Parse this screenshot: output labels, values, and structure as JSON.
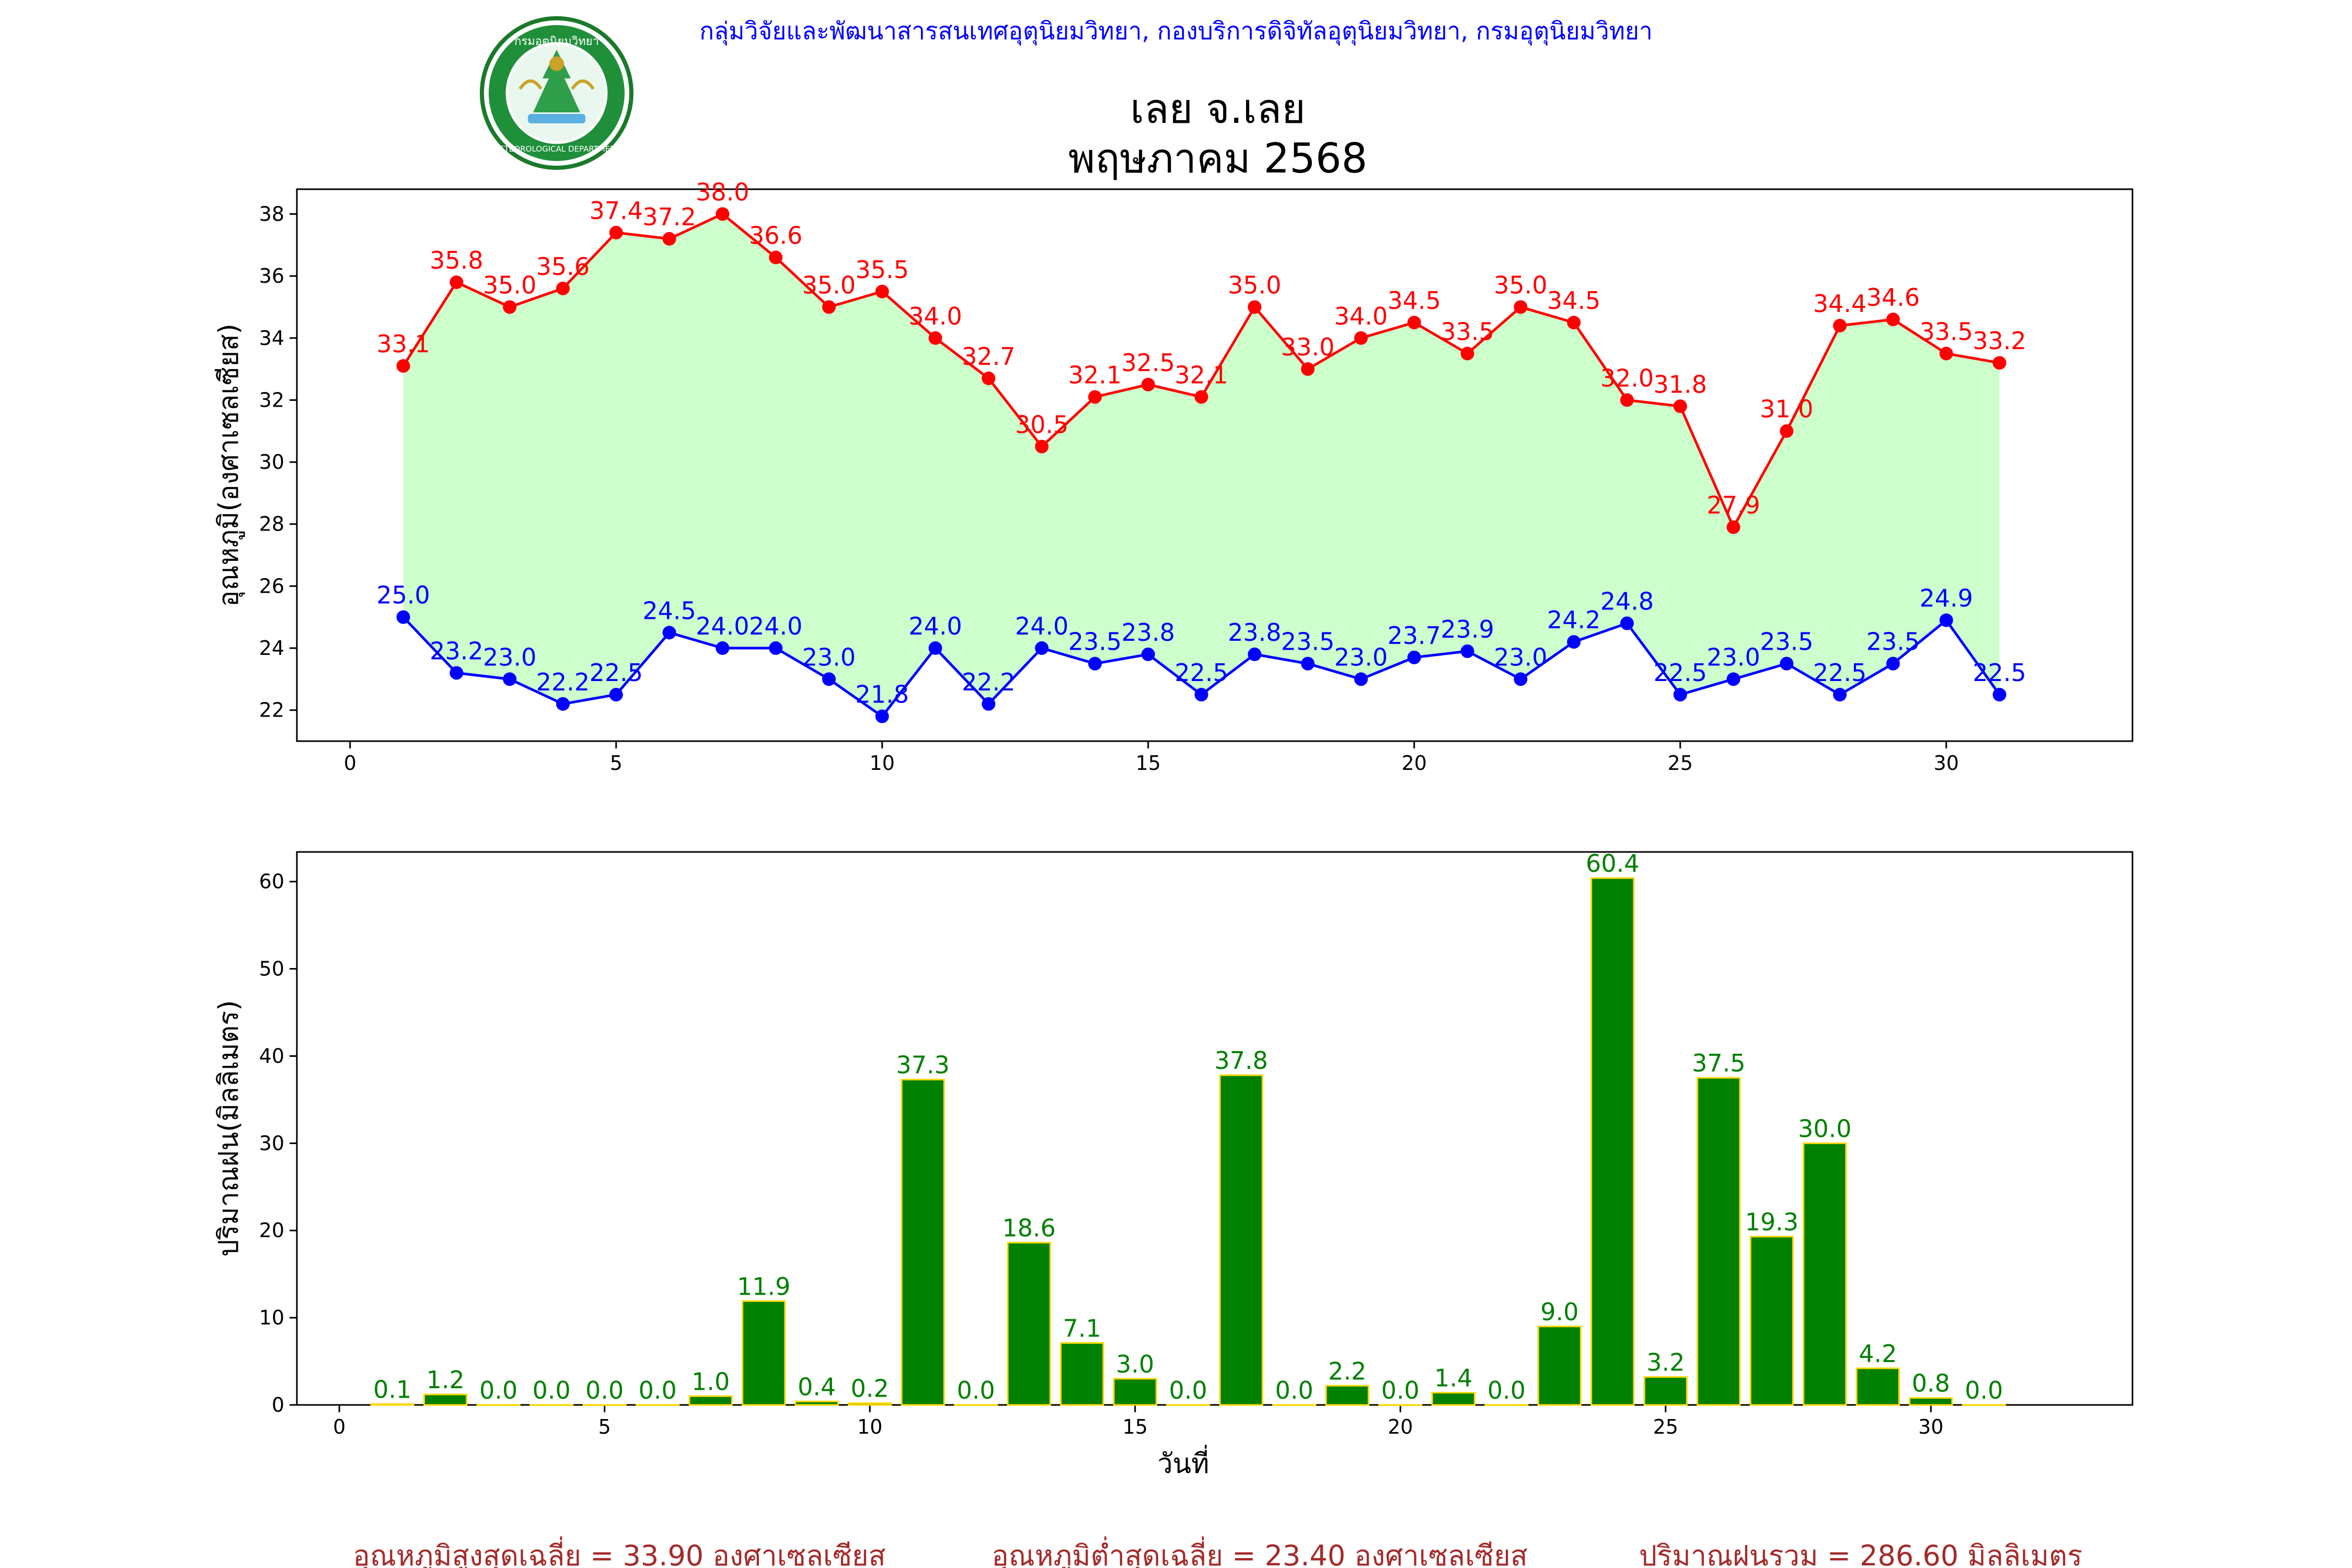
{
  "header": {
    "organization": "กลุ่มวิจัยและพัฒนาสารสนเทศอุตุนิยมวิทยา, กองบริการดิจิทัลอุตุนิยมวิทยา, กรมอุตุนิยมวิทยา",
    "station": "เลย จ.เลย",
    "month": "พฤษภาคม 2568",
    "logo_text": "METEOROLOGICAL DEPARTMENT",
    "logo_thai": "กรมอุตุนิยมวิทยา"
  },
  "footer": {
    "avg_max": "อุณหภูมิสูงสุดเฉลี่ย = 33.90 องศาเซลเซียส",
    "avg_min": "อุณหภูมิต่ำสุดเฉลี่ย = 23.40 องศาเซลเซียส",
    "total_rain": "ปริมาณฝนรวม = 286.60 มิลลิเมตร"
  },
  "chart_data": [
    {
      "type": "line",
      "ylabel": "อุณหภูมิ(องศาเซลเซียส)",
      "xlabel": "",
      "xlim": [
        -1,
        33.5
      ],
      "ylim": [
        21,
        38.8
      ],
      "xticks": [
        0,
        5,
        10,
        15,
        20,
        25,
        30
      ],
      "yticks": [
        22,
        24,
        26,
        28,
        30,
        32,
        34,
        36,
        38
      ],
      "x": [
        1,
        2,
        3,
        4,
        5,
        6,
        7,
        8,
        9,
        10,
        11,
        12,
        13,
        14,
        15,
        16,
        17,
        18,
        19,
        20,
        21,
        22,
        23,
        24,
        25,
        26,
        27,
        28,
        29,
        30,
        31
      ],
      "fill_between": {
        "color": "#ccffcc"
      },
      "series": [
        {
          "name": "max",
          "color": "#ff0000",
          "values": [
            33.1,
            35.8,
            35.0,
            35.6,
            37.4,
            37.2,
            38.0,
            36.6,
            35.0,
            35.5,
            34.0,
            32.7,
            30.5,
            32.1,
            32.5,
            32.1,
            35.0,
            33.0,
            34.0,
            34.5,
            33.5,
            35.0,
            34.5,
            32.0,
            31.8,
            27.9,
            31.0,
            34.4,
            34.6,
            33.5,
            33.2
          ]
        },
        {
          "name": "min",
          "color": "#0000ff",
          "values": [
            25.0,
            23.2,
            23.0,
            22.2,
            22.5,
            24.5,
            24.0,
            24.0,
            23.0,
            21.8,
            24.0,
            22.2,
            24.0,
            23.5,
            23.8,
            22.5,
            23.8,
            23.5,
            23.0,
            23.7,
            23.9,
            23.0,
            24.2,
            24.8,
            22.5,
            23.0,
            23.5,
            22.5,
            23.5,
            24.9,
            22.5
          ]
        }
      ]
    },
    {
      "type": "bar",
      "ylabel": "ปริมาณฝน(มิลลิเมตร)",
      "xlabel": "วันที่",
      "xlim": [
        -0.8,
        33.8
      ],
      "ylim": [
        0,
        63.4
      ],
      "xticks": [
        0,
        5,
        10,
        15,
        20,
        25,
        30
      ],
      "yticks": [
        0,
        10,
        20,
        30,
        40,
        50,
        60
      ],
      "bar_color": "#008000",
      "edge_color": "#ffd700",
      "label_color": "#008000",
      "x": [
        1,
        2,
        3,
        4,
        5,
        6,
        7,
        8,
        9,
        10,
        11,
        12,
        13,
        14,
        15,
        16,
        17,
        18,
        19,
        20,
        21,
        22,
        23,
        24,
        25,
        26,
        27,
        28,
        29,
        30,
        31
      ],
      "values": [
        0.1,
        1.2,
        0.0,
        0.0,
        0.0,
        0.0,
        1.0,
        11.9,
        0.4,
        0.2,
        37.3,
        0.0,
        18.6,
        7.1,
        3.0,
        0.0,
        37.8,
        0.0,
        2.2,
        0.0,
        1.4,
        0.0,
        9.0,
        60.4,
        3.2,
        37.5,
        19.3,
        30.0,
        4.2,
        0.8,
        0.0
      ]
    }
  ]
}
